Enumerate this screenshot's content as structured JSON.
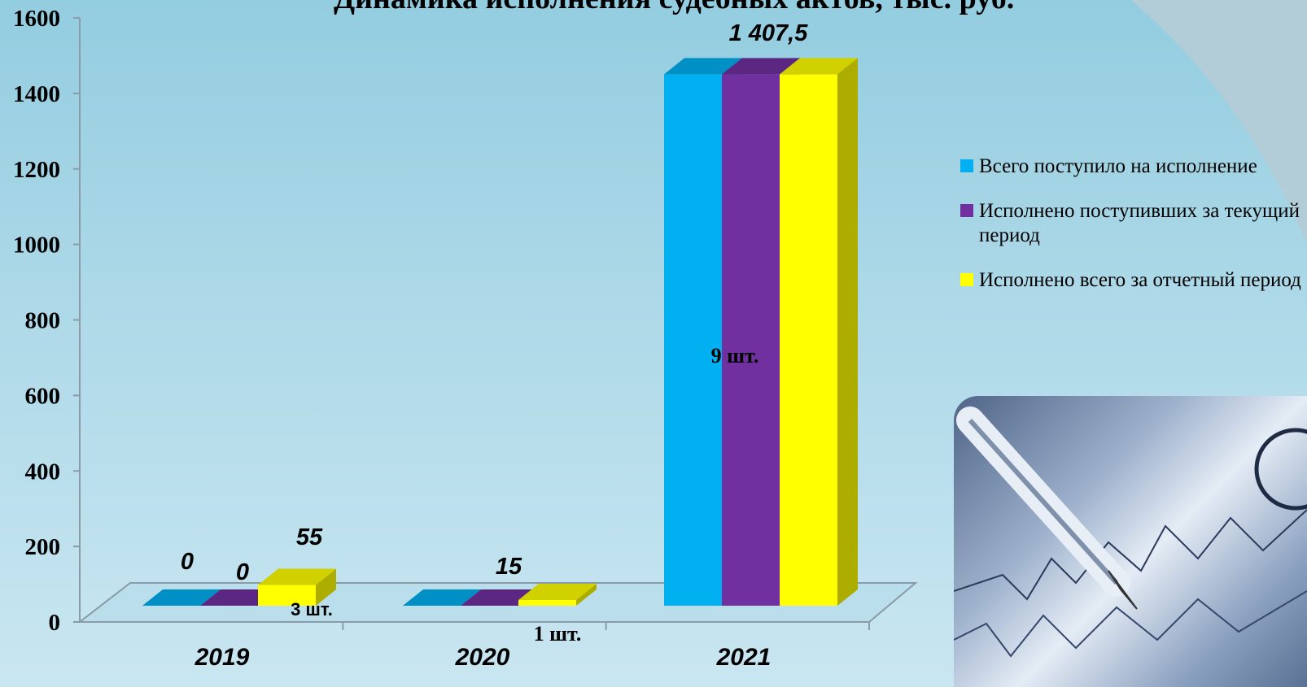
{
  "chart_data": {
    "type": "bar",
    "title": "Динамика исполнения судебных актов, тыс. руб.",
    "categories": [
      "2019",
      "2020",
      "2021"
    ],
    "series": [
      {
        "name": "Всего поступило на исполнение",
        "color": "#00b0f0",
        "values": [
          0,
          0,
          1407.5
        ]
      },
      {
        "name": "Исполнено поступивших за текущий период",
        "color": "#7030a0",
        "values": [
          0,
          0,
          1407.5
        ]
      },
      {
        "name": "Исполнено всего за отчетный период",
        "color": "#ffff00",
        "values": [
          55,
          15,
          1407.5
        ]
      }
    ],
    "ylim": [
      0,
      1600
    ],
    "yticks": [
      "0",
      "200",
      "400",
      "600",
      "800",
      "1000",
      "1200",
      "1400",
      "1600"
    ],
    "data_labels": [
      "0",
      "0",
      "55",
      "15",
      "1 407,5"
    ],
    "annotations": [
      "3 шт.",
      "1  шт.",
      "9 шт."
    ],
    "legend_position": "right",
    "grid": false
  },
  "colors": {
    "background_top": "#93cde0",
    "background_bottom": "#c9e6f1",
    "corner_panel": "#b3cdd8"
  },
  "decoration": {
    "photo": "pen-on-financial-documents"
  }
}
